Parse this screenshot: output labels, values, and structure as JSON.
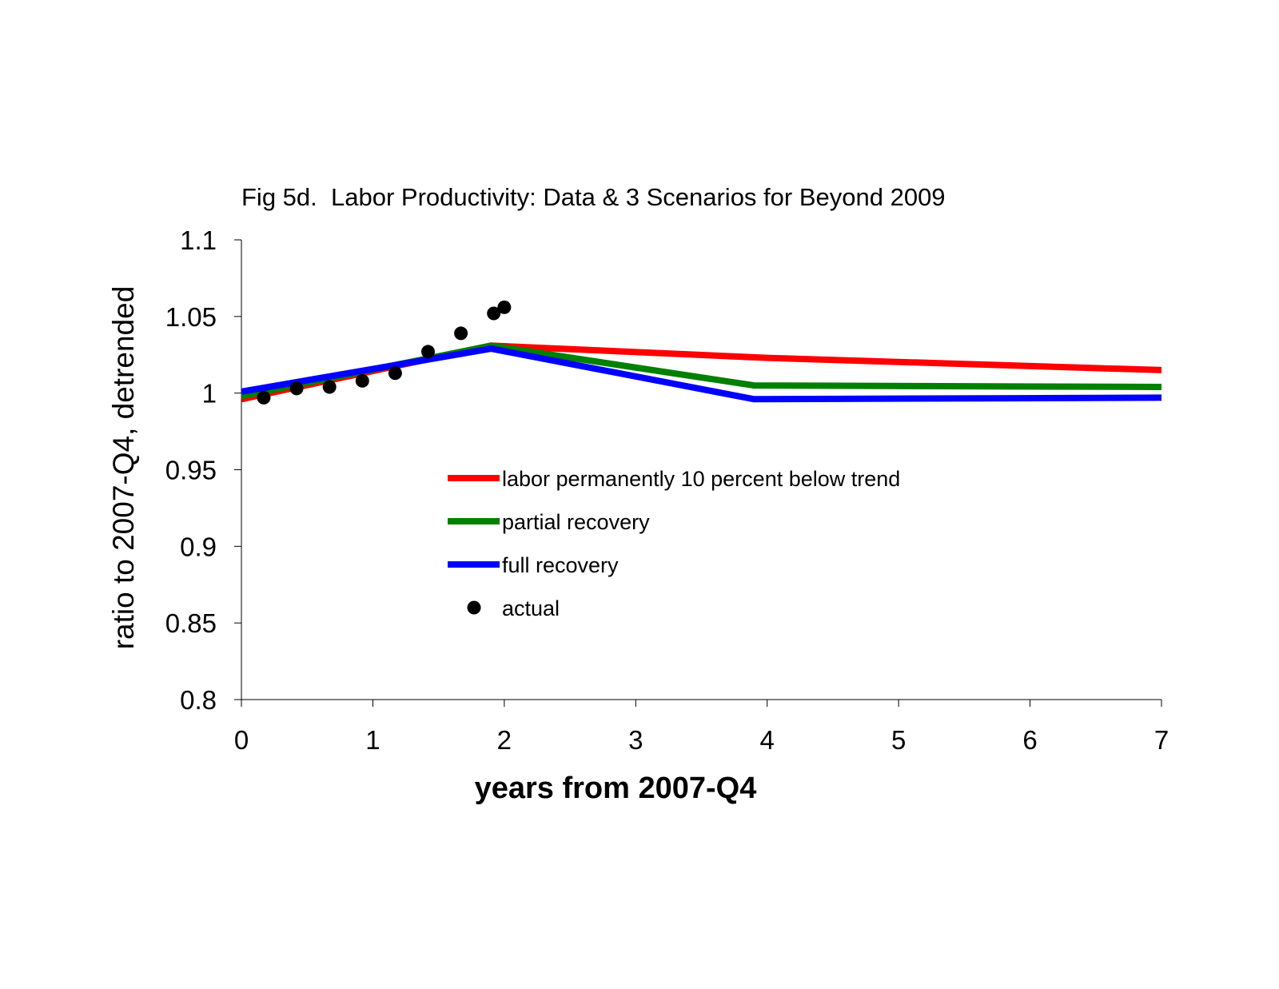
{
  "chart_data": {
    "type": "line",
    "title": "Fig 5d.  Labor Productivity: Data & 3 Scenarios for Beyond 2009",
    "xlabel": "years from 2007-Q4",
    "ylabel": "ratio to 2007-Q4, detrended",
    "xlim": [
      0,
      7
    ],
    "ylim": [
      0.8,
      1.1
    ],
    "x_ticks": [
      "0",
      "1",
      "2",
      "3",
      "4",
      "5",
      "6",
      "7"
    ],
    "y_ticks": [
      "0.8",
      "0.85",
      "0.9",
      "0.95",
      "1",
      "1.05",
      "1.1"
    ],
    "grid": false,
    "legend_position": "center",
    "series": [
      {
        "name": "labor permanently 10 percent below trend",
        "color": "#ff0000",
        "style": "line",
        "x": [
          0,
          1.9,
          4,
          7
        ],
        "y": [
          0.996,
          1.031,
          1.023,
          1.015
        ]
      },
      {
        "name": "partial recovery",
        "color": "#008000",
        "style": "line",
        "x": [
          0,
          1.9,
          3.9,
          7
        ],
        "y": [
          0.998,
          1.031,
          1.005,
          1.004
        ]
      },
      {
        "name": "full recovery",
        "color": "#0000ff",
        "style": "line",
        "x": [
          0,
          1.9,
          3.9,
          7
        ],
        "y": [
          1.001,
          1.029,
          0.996,
          0.997
        ]
      },
      {
        "name": "actual",
        "color": "#000000",
        "style": "scatter",
        "x": [
          0.17,
          0.42,
          0.67,
          0.92,
          1.17,
          1.42,
          1.67,
          1.92,
          2.0
        ],
        "y": [
          0.997,
          1.003,
          1.004,
          1.008,
          1.013,
          1.027,
          1.039,
          1.052,
          1.056
        ]
      }
    ]
  }
}
